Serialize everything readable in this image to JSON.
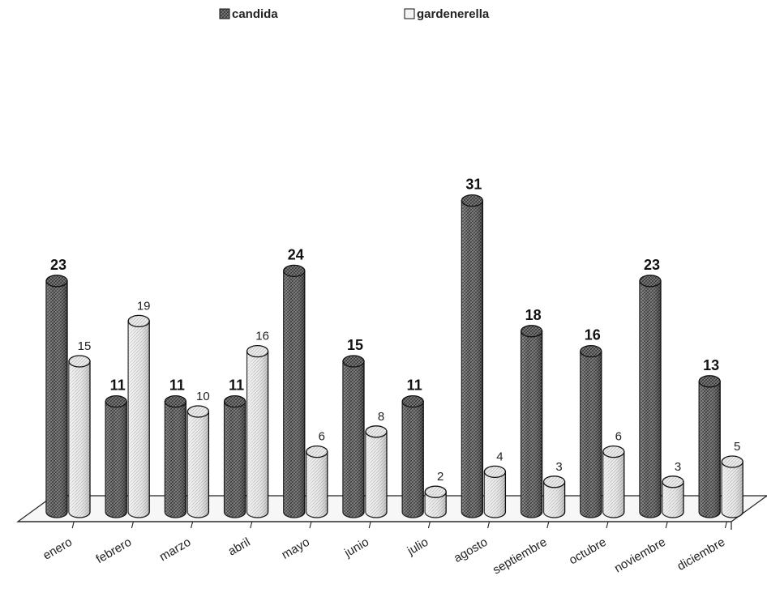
{
  "chart_data": {
    "type": "bar",
    "categories": [
      "enero",
      "febrero",
      "marzo",
      "abril",
      "mayo",
      "junio",
      "julio",
      "agosto",
      "septiembre",
      "octubre",
      "noviembre",
      "diciembre"
    ],
    "series": [
      {
        "name": "candida",
        "values": [
          23,
          11,
          11,
          11,
          24,
          15,
          11,
          31,
          18,
          16,
          23,
          13
        ],
        "color": "#555555"
      },
      {
        "name": "gardenerella",
        "values": [
          15,
          19,
          10,
          16,
          6,
          8,
          2,
          4,
          3,
          6,
          3,
          5
        ],
        "color": "#e6e6e6"
      }
    ],
    "legend": "top-center",
    "grid": false,
    "style": "3d-cylinder"
  }
}
